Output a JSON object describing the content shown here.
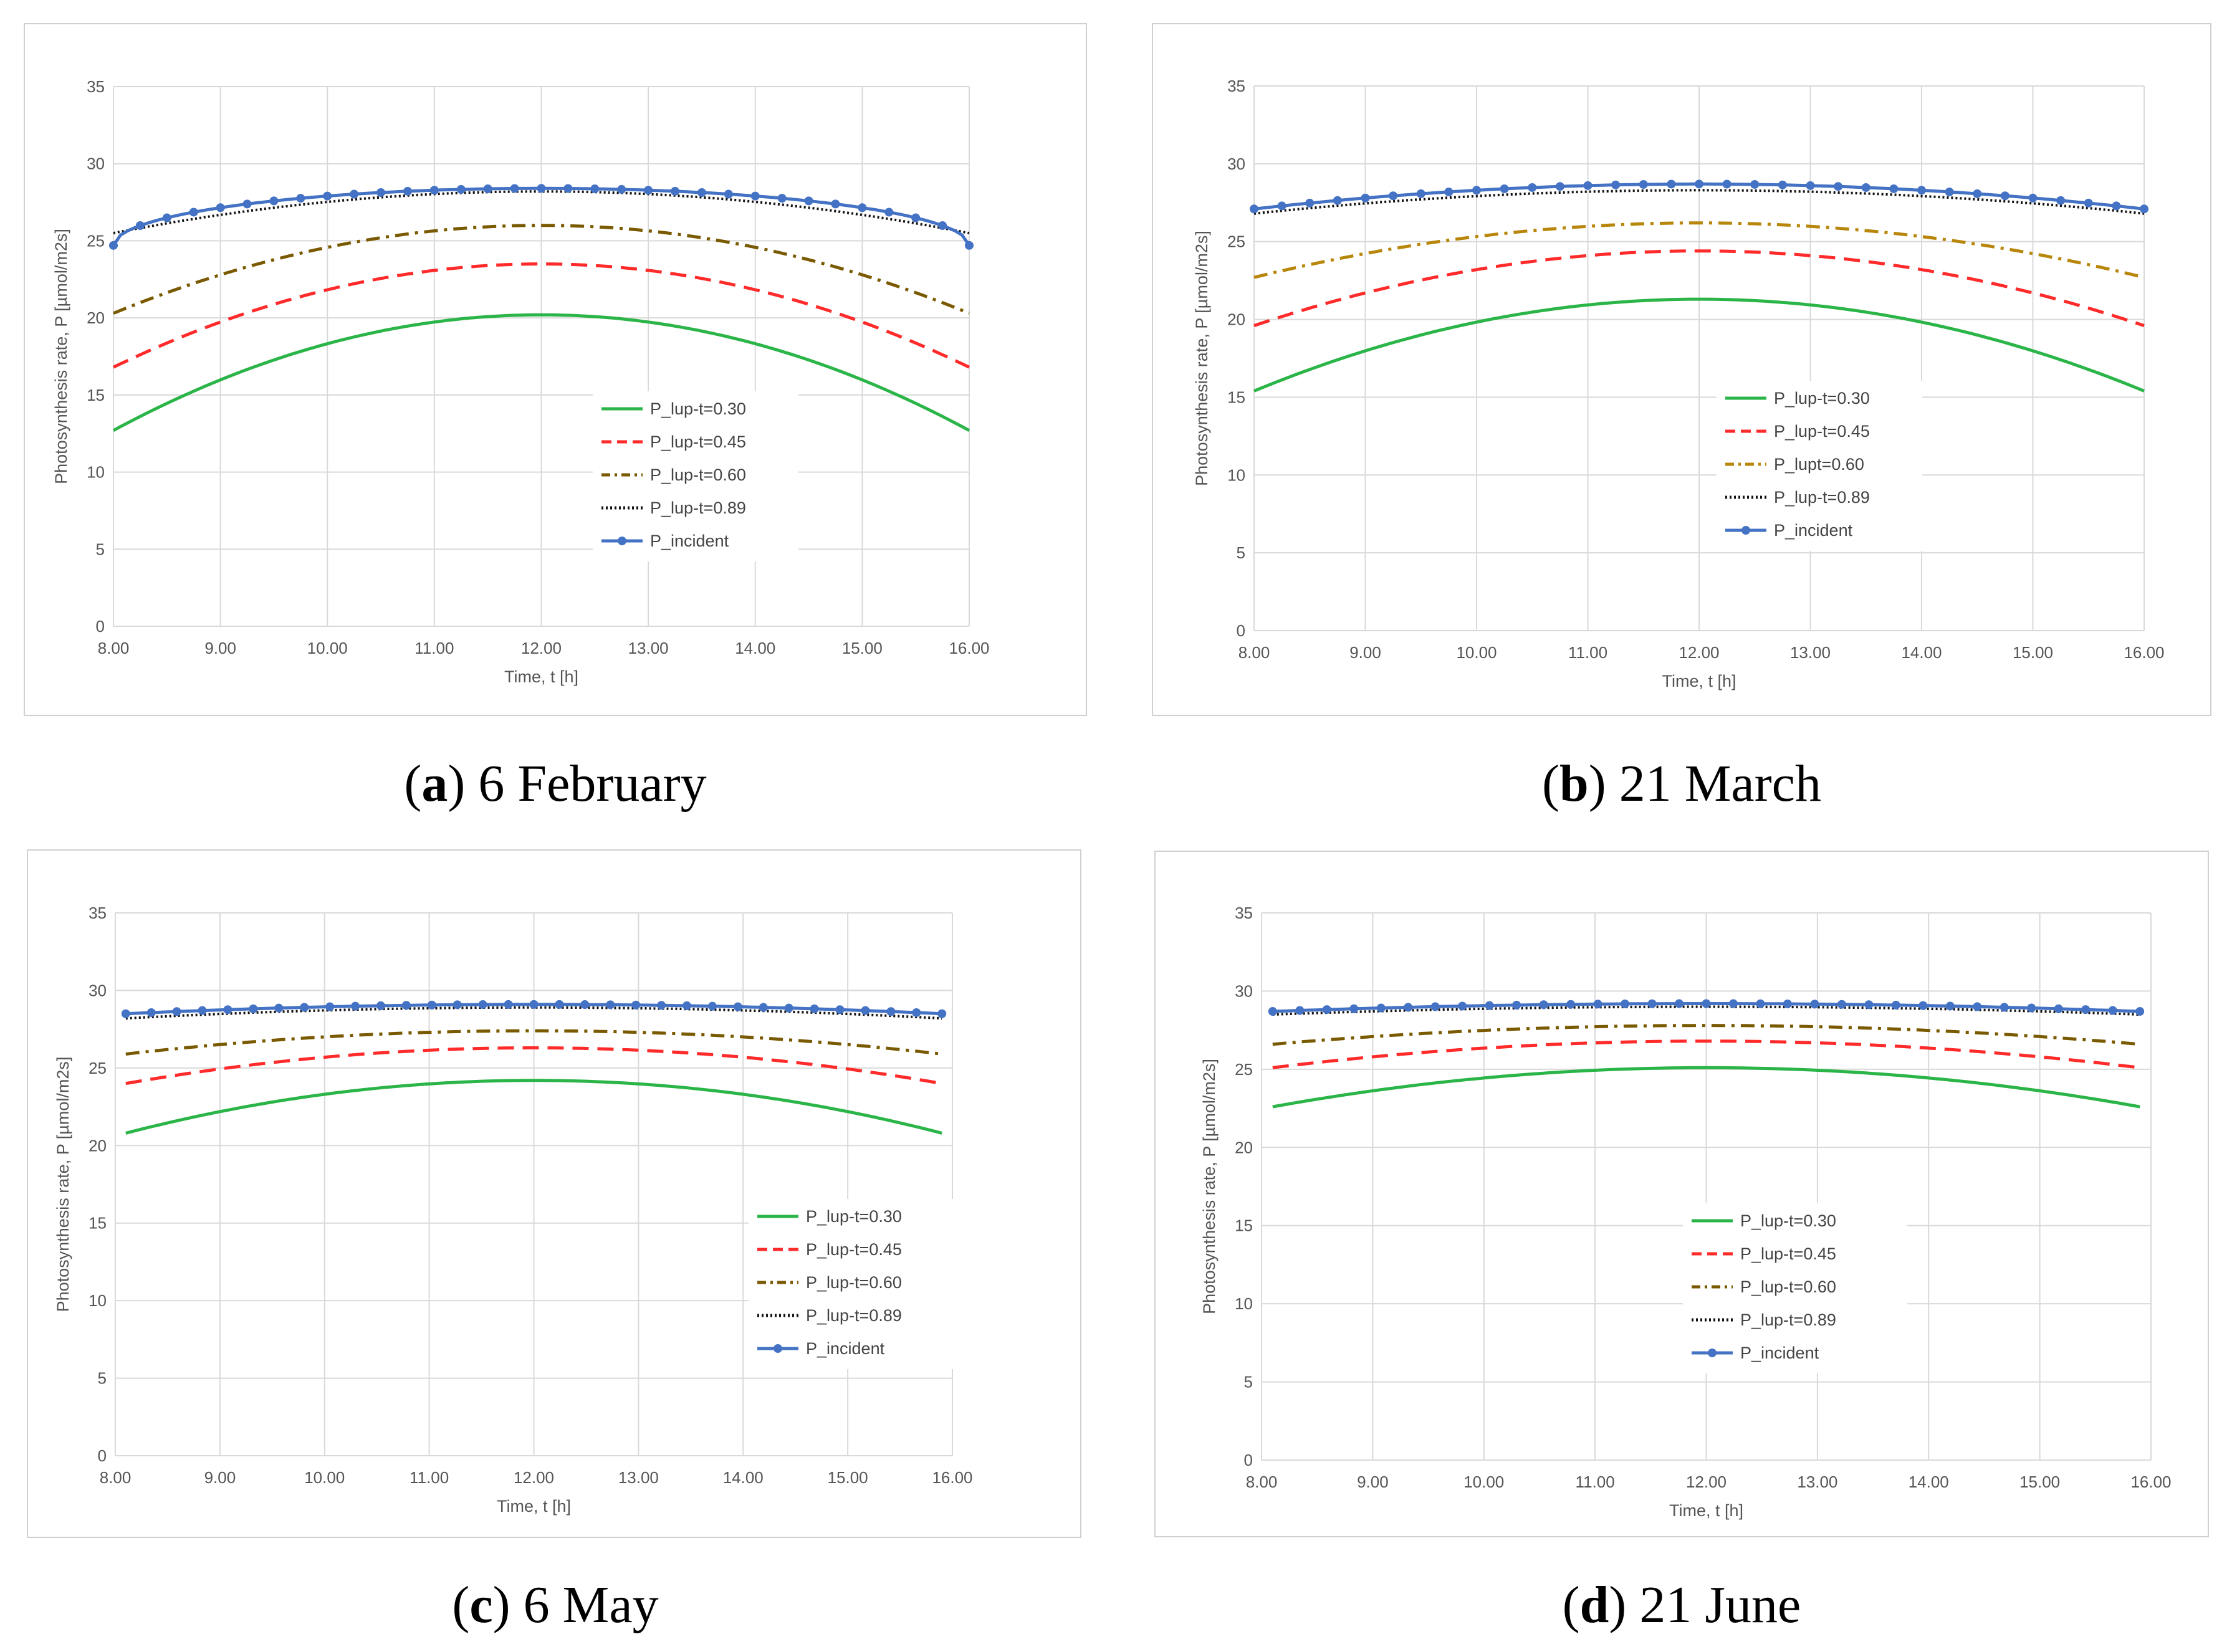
{
  "charts": [
    {
      "id": "a",
      "caption": {
        "letter": "a",
        "text": "6 February"
      },
      "chart_data": {
        "type": "line",
        "xlabel": "Time, t [h]",
        "ylabel": "Photosynthesis rate, P [µmol/m2s]",
        "xlim": [
          8,
          16
        ],
        "ylim": [
          0,
          35
        ],
        "x_ticks": [
          "8.00",
          "9.00",
          "10.00",
          "11.00",
          "12.00",
          "13.00",
          "14.00",
          "15.00",
          "16.00"
        ],
        "y_ticks": [
          "0",
          "5",
          "10",
          "15",
          "20",
          "25",
          "30",
          "35"
        ],
        "grid": true,
        "legend_position": "lower-center-right",
        "series": [
          {
            "name": "P_lup-t=0.30",
            "color": "#2bb548",
            "style": "solid",
            "x_start": 8,
            "x_end": 16,
            "edge": 12.7,
            "peak": 20.2,
            "shape": 1.0
          },
          {
            "name": "P_lup-t=0.45",
            "color": "#ff2a2a",
            "style": "dashed",
            "x_start": 8,
            "x_end": 16,
            "edge": 16.8,
            "peak": 23.5,
            "shape": 1.0
          },
          {
            "name": "P_lup-t=0.60",
            "color": "#7a5a00",
            "style": "dashdot",
            "x_start": 8,
            "x_end": 16,
            "edge": 20.3,
            "peak": 26.0,
            "shape": 1.0
          },
          {
            "name": "P_lup-t=0.89",
            "color": "#111111",
            "style": "dotted",
            "x_start": 8,
            "x_end": 16,
            "edge": 25.5,
            "peak": 28.2,
            "shape": 1.0
          },
          {
            "name": "P_incident",
            "color": "#4472c4",
            "style": "marker",
            "x_start": 8,
            "x_end": 16,
            "edge": 24.7,
            "peak": 28.4,
            "shape": 4.0
          }
        ]
      }
    },
    {
      "id": "b",
      "caption": {
        "letter": "b",
        "text": "21 March"
      },
      "chart_data": {
        "type": "line",
        "xlabel": "Time, t [h]",
        "ylabel": "Photosynthesis rate, P [µmol/m2s]",
        "xlim": [
          8,
          16
        ],
        "ylim": [
          0,
          35
        ],
        "x_ticks": [
          "8.00",
          "9.00",
          "10.00",
          "11.00",
          "12.00",
          "13.00",
          "14.00",
          "15.00",
          "16.00"
        ],
        "y_ticks": [
          "0",
          "5",
          "10",
          "15",
          "20",
          "25",
          "30",
          "35"
        ],
        "grid": true,
        "legend_position": "lower-center-right",
        "series": [
          {
            "name": "P_lup-t=0.30",
            "color": "#2bb548",
            "style": "solid",
            "x_start": 8,
            "x_end": 16,
            "edge": 15.4,
            "peak": 21.3,
            "shape": 1.0
          },
          {
            "name": "P_lup-t=0.45",
            "color": "#ff2a2a",
            "style": "dashed",
            "x_start": 8,
            "x_end": 16,
            "edge": 19.6,
            "peak": 24.4,
            "shape": 1.0
          },
          {
            "name": "P_lupt=0.60",
            "color": "#b8860b",
            "style": "dashdot",
            "x_start": 8,
            "x_end": 16,
            "edge": 22.7,
            "peak": 26.2,
            "shape": 1.0
          },
          {
            "name": "P_lup-t=0.89",
            "color": "#111111",
            "style": "dotted",
            "x_start": 8,
            "x_end": 16,
            "edge": 26.8,
            "peak": 28.3,
            "shape": 1.0
          },
          {
            "name": "P_incident",
            "color": "#4472c4",
            "style": "marker",
            "x_start": 8,
            "x_end": 16,
            "edge": 27.1,
            "peak": 28.7,
            "shape": 1.0
          }
        ]
      }
    },
    {
      "id": "c",
      "caption": {
        "letter": "c",
        "text": "6 May"
      },
      "chart_data": {
        "type": "line",
        "xlabel": "Time, t [h]",
        "ylabel": "Photosynthesis rate, P [µmol/m2s]",
        "xlim": [
          8,
          16
        ],
        "ylim": [
          0,
          35
        ],
        "x_ticks": [
          "8.00",
          "9.00",
          "10.00",
          "11.00",
          "12.00",
          "13.00",
          "14.00",
          "15.00",
          "16.00"
        ],
        "y_ticks": [
          "0",
          "5",
          "10",
          "15",
          "20",
          "25",
          "30",
          "35"
        ],
        "grid": true,
        "legend_position": "lower-right",
        "series": [
          {
            "name": "P_lup-t=0.30",
            "color": "#2bb548",
            "style": "solid",
            "x_start": 8.1,
            "x_end": 15.9,
            "edge": 20.8,
            "peak": 24.2,
            "shape": 1.0
          },
          {
            "name": "P_lup-t=0.45",
            "color": "#ff2a2a",
            "style": "dashed",
            "x_start": 8.1,
            "x_end": 15.9,
            "edge": 24.0,
            "peak": 26.3,
            "shape": 1.0
          },
          {
            "name": "P_lup-t=0.60",
            "color": "#7a5a00",
            "style": "dashdot",
            "x_start": 8.1,
            "x_end": 15.9,
            "edge": 25.9,
            "peak": 27.4,
            "shape": 1.0
          },
          {
            "name": "P_lup-t=0.89",
            "color": "#111111",
            "style": "dotted",
            "x_start": 8.1,
            "x_end": 15.9,
            "edge": 28.2,
            "peak": 28.9,
            "shape": 1.0
          },
          {
            "name": "P_incident",
            "color": "#4472c4",
            "style": "marker",
            "x_start": 8.1,
            "x_end": 15.9,
            "edge": 28.5,
            "peak": 29.1,
            "shape": 1.0
          }
        ]
      }
    },
    {
      "id": "d",
      "caption": {
        "letter": "d",
        "text": "21 June"
      },
      "chart_data": {
        "type": "line",
        "xlabel": "Time, t [h]",
        "ylabel": "Photosynthesis rate, P [µmol/m2s]",
        "xlim": [
          8,
          16
        ],
        "ylim": [
          0,
          35
        ],
        "x_ticks": [
          "8.00",
          "9.00",
          "10.00",
          "11.00",
          "12.00",
          "13.00",
          "14.00",
          "15.00",
          "16.00"
        ],
        "y_ticks": [
          "0",
          "5",
          "10",
          "15",
          "20",
          "25",
          "30",
          "35"
        ],
        "grid": true,
        "legend_position": "lower-center",
        "series": [
          {
            "name": "P_lup-t=0.30",
            "color": "#2bb548",
            "style": "solid",
            "x_start": 8.1,
            "x_end": 15.9,
            "edge": 22.6,
            "peak": 25.1,
            "shape": 1.0
          },
          {
            "name": "P_lup-t=0.45",
            "color": "#ff2a2a",
            "style": "dashed",
            "x_start": 8.1,
            "x_end": 15.9,
            "edge": 25.1,
            "peak": 26.8,
            "shape": 1.0
          },
          {
            "name": "P_lup-t=0.60",
            "color": "#7a5a00",
            "style": "dashdot",
            "x_start": 8.1,
            "x_end": 15.9,
            "edge": 26.6,
            "peak": 27.8,
            "shape": 1.0
          },
          {
            "name": "P_lup-t=0.89",
            "color": "#111111",
            "style": "dotted",
            "x_start": 8.1,
            "x_end": 15.9,
            "edge": 28.5,
            "peak": 29.0,
            "shape": 1.0
          },
          {
            "name": "P_incident",
            "color": "#4472c4",
            "style": "marker",
            "x_start": 8.1,
            "x_end": 15.9,
            "edge": 28.7,
            "peak": 29.2,
            "shape": 1.0
          }
        ]
      }
    }
  ]
}
